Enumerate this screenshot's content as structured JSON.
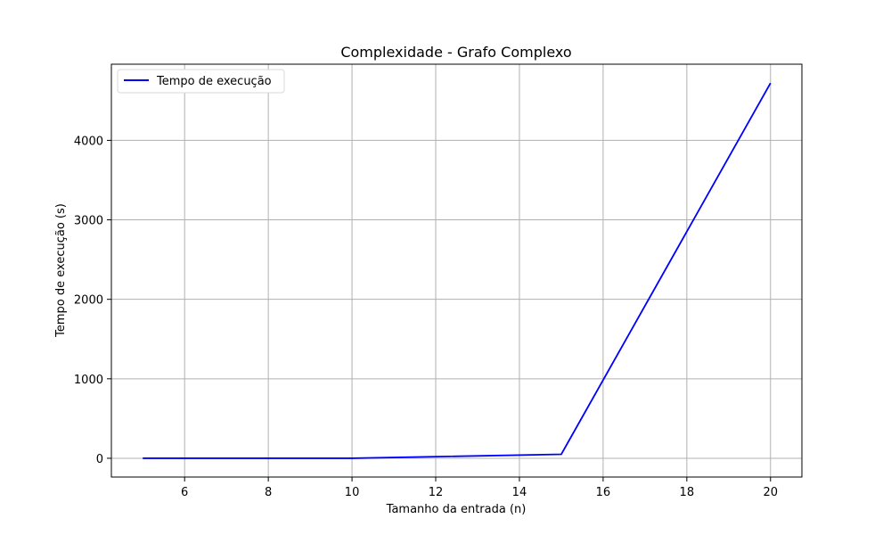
{
  "chart_data": {
    "type": "line",
    "title": "Complexidade - Grafo Complexo",
    "xlabel": "Tamanho da entrada (n)",
    "ylabel": "Tempo de execução (s)",
    "xlim": [
      4.25,
      20.75
    ],
    "ylim": [
      -236,
      4958
    ],
    "xticks": [
      6,
      8,
      10,
      12,
      14,
      16,
      18,
      20
    ],
    "yticks": [
      0,
      1000,
      2000,
      3000,
      4000
    ],
    "grid": true,
    "legend_position": "top-left",
    "series": [
      {
        "name": "Tempo de execução",
        "color": "#0000ff",
        "x": [
          5,
          10,
          15,
          20
        ],
        "y": [
          0.0,
          0.5,
          50,
          4720
        ]
      }
    ]
  }
}
